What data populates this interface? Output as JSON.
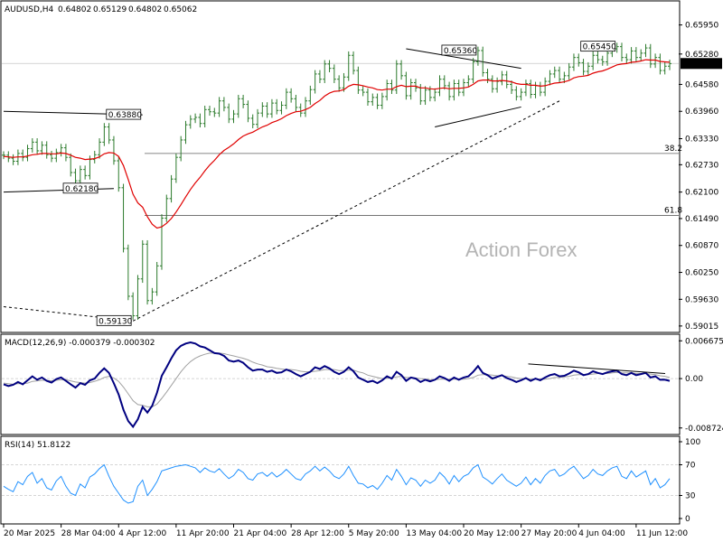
{
  "chart_data": {
    "type": "line",
    "header": {
      "symbol": "AUDUSD,H4",
      "ohlc": [
        "0.64802",
        "0.65129",
        "0.64802",
        "0.65062"
      ]
    },
    "watermark": "Action Forex",
    "colors": {
      "price": "#2b7a2b",
      "ma": "#e00000",
      "macd": "#000080",
      "signal": "#a0a0a0",
      "rsi": "#1e90ff",
      "grid": "#c8c8c8"
    },
    "price_axis": {
      "ticks": [
        "0.65950",
        "0.65280",
        "0.64580",
        "0.63960",
        "0.63330",
        "0.62730",
        "0.62100",
        "0.61490",
        "0.60870",
        "0.60250",
        "0.59630",
        "0.59015"
      ],
      "ylim": [
        0.5895,
        0.6615
      ],
      "current": "0.65062"
    },
    "x_axis": {
      "labels": [
        "20 Mar 2025",
        "28 Mar 04:00",
        "4 Apr 12:00",
        "11 Apr 20:00",
        "21 Apr 04:00",
        "28 Apr 12:00",
        "5 May 20:00",
        "13 May 04:00",
        "20 May 12:00",
        "27 May 20:00",
        "4 Jun 04:00",
        "11 Jun 12:00"
      ],
      "label_index": [
        0,
        12,
        24,
        36,
        48,
        60,
        72,
        84,
        96,
        108,
        120,
        132
      ],
      "count": 140
    },
    "price": [
      0.6295,
      0.6288,
      0.6281,
      0.6299,
      0.629,
      0.631,
      0.6325,
      0.6305,
      0.6318,
      0.6296,
      0.6288,
      0.6301,
      0.6312,
      0.629,
      0.6255,
      0.6236,
      0.6262,
      0.6248,
      0.6285,
      0.6296,
      0.6325,
      0.636,
      0.633,
      0.6282,
      0.622,
      0.608,
      0.597,
      0.5925,
      0.601,
      0.609,
      0.596,
      0.598,
      0.604,
      0.615,
      0.6195,
      0.624,
      0.629,
      0.633,
      0.6365,
      0.6378,
      0.6382,
      0.6368,
      0.64,
      0.6395,
      0.6392,
      0.642,
      0.6405,
      0.6378,
      0.639,
      0.6425,
      0.6412,
      0.638,
      0.6366,
      0.6392,
      0.6408,
      0.639,
      0.6415,
      0.6398,
      0.641,
      0.644,
      0.6425,
      0.6405,
      0.6392,
      0.642,
      0.6446,
      0.6482,
      0.647,
      0.6505,
      0.6495,
      0.647,
      0.645,
      0.6475,
      0.6525,
      0.649,
      0.6445,
      0.644,
      0.6418,
      0.6428,
      0.641,
      0.643,
      0.646,
      0.6445,
      0.6505,
      0.6478,
      0.6432,
      0.6462,
      0.645,
      0.642,
      0.6445,
      0.6428,
      0.644,
      0.647,
      0.6455,
      0.643,
      0.646,
      0.644,
      0.6462,
      0.647,
      0.651,
      0.6536,
      0.6485,
      0.647,
      0.6448,
      0.6465,
      0.648,
      0.6458,
      0.6445,
      0.643,
      0.644,
      0.646,
      0.6435,
      0.6455,
      0.644,
      0.6465,
      0.6482,
      0.649,
      0.647,
      0.6478,
      0.6498,
      0.652,
      0.6508,
      0.6488,
      0.65,
      0.6525,
      0.6515,
      0.651,
      0.653,
      0.654,
      0.6545,
      0.652,
      0.6515,
      0.6535,
      0.652,
      0.653,
      0.6542,
      0.6505,
      0.652,
      0.649,
      0.65,
      0.6506
    ],
    "ma": [
      0.6292,
      0.6291,
      0.629,
      0.6291,
      0.6291,
      0.6293,
      0.6296,
      0.6297,
      0.6299,
      0.6299,
      0.6298,
      0.6298,
      0.63,
      0.6299,
      0.6295,
      0.629,
      0.6288,
      0.6285,
      0.6286,
      0.6287,
      0.6291,
      0.6298,
      0.6301,
      0.63,
      0.6292,
      0.6271,
      0.6239,
      0.6205,
      0.6185,
      0.6175,
      0.6153,
      0.6136,
      0.6127,
      0.613,
      0.6138,
      0.6149,
      0.6164,
      0.6181,
      0.6199,
      0.6216,
      0.6231,
      0.6244,
      0.6259,
      0.6272,
      0.6283,
      0.6296,
      0.6306,
      0.6313,
      0.6321,
      0.6331,
      0.6339,
      0.6344,
      0.6348,
      0.6354,
      0.636,
      0.6364,
      0.637,
      0.6374,
      0.6379,
      0.6386,
      0.6391,
      0.6395,
      0.6396,
      0.64,
      0.6405,
      0.6414,
      0.6421,
      0.6431,
      0.6438,
      0.6442,
      0.6443,
      0.6446,
      0.6454,
      0.6458,
      0.6457,
      0.6455,
      0.6452,
      0.645,
      0.6446,
      0.6445,
      0.6447,
      0.6447,
      0.6453,
      0.6456,
      0.6453,
      0.6454,
      0.6454,
      0.645,
      0.645,
      0.6448,
      0.6447,
      0.6449,
      0.645,
      0.6448,
      0.6449,
      0.6449,
      0.645,
      0.6452,
      0.6458,
      0.6466,
      0.6468,
      0.6468,
      0.6466,
      0.6466,
      0.6467,
      0.6466,
      0.6464,
      0.646,
      0.6458,
      0.6458,
      0.6456,
      0.6456,
      0.6454,
      0.6455,
      0.6458,
      0.6461,
      0.6462,
      0.6464,
      0.6467,
      0.6473,
      0.6476,
      0.6477,
      0.6479,
      0.6484,
      0.6487,
      0.6489,
      0.6493,
      0.6498,
      0.6503,
      0.6505,
      0.6506,
      0.6509,
      0.651,
      0.6512,
      0.6515,
      0.6514,
      0.6514,
      0.6511,
      0.651,
      0.6509
    ],
    "horizontal_levels": [
      {
        "label": "38.2",
        "value": 0.6299
      },
      {
        "label": "61.8",
        "value": 0.6156
      }
    ],
    "price_labels": [
      {
        "text": "0.63880",
        "index": 29,
        "value": 0.6388
      },
      {
        "text": "0.62180",
        "index": 20,
        "value": 0.6218
      },
      {
        "text": "0.65360",
        "index": 99,
        "value": 0.6536
      },
      {
        "text": "0.65450",
        "index": 128,
        "value": 0.6545
      },
      {
        "text": "0.59130",
        "index": 27,
        "value": 0.5913
      }
    ],
    "trend_lines": [
      {
        "style": "solid",
        "x1": 0,
        "y1": 0.6396,
        "x2": 29,
        "y2": 0.6388
      },
      {
        "style": "solid",
        "x1": 0,
        "y1": 0.621,
        "x2": 23,
        "y2": 0.6218
      },
      {
        "style": "solid",
        "x1": 84,
        "y1": 0.654,
        "x2": 108,
        "y2": 0.6495
      },
      {
        "style": "solid",
        "x1": 90,
        "y1": 0.636,
        "x2": 108,
        "y2": 0.6406
      },
      {
        "style": "dashed",
        "x1": 0,
        "y1": 0.5946,
        "x2": 27,
        "y2": 0.5913
      },
      {
        "style": "dashed",
        "x1": 27,
        "y1": 0.5913,
        "x2": 116,
        "y2": 0.642
      }
    ],
    "macd": {
      "title": "MACD(12,26,9) -0.000379 -0.000302",
      "ticks": [
        "0.006675",
        "0.00",
        "-0.008724"
      ],
      "ylim": [
        -0.0094,
        0.0072
      ],
      "divergence_line": {
        "x1": 111,
        "y1": 0.0026,
        "x2": 143,
        "y2": 0.0009
      },
      "macd": [
        -0.001,
        -0.0013,
        -0.0011,
        -0.0006,
        -0.001,
        -0.0003,
        0.0004,
        -0.0002,
        0.0002,
        -0.0004,
        -0.0007,
        -0.0001,
        0.0002,
        -0.0004,
        -0.001,
        -0.0016,
        -0.0008,
        -0.0011,
        -0.0003,
        0.0,
        0.001,
        0.0018,
        0.001,
        -0.0008,
        -0.0028,
        -0.0055,
        -0.0075,
        -0.0085,
        -0.0072,
        -0.005,
        -0.006,
        -0.0048,
        -0.0025,
        0.0005,
        0.002,
        0.0036,
        0.005,
        0.0058,
        0.0062,
        0.0064,
        0.0062,
        0.0057,
        0.0055,
        0.005,
        0.0045,
        0.0044,
        0.004,
        0.0032,
        0.003,
        0.0032,
        0.0028,
        0.002,
        0.0014,
        0.0016,
        0.0016,
        0.0012,
        0.0014,
        0.001,
        0.0011,
        0.0016,
        0.0013,
        0.0008,
        0.0004,
        0.0008,
        0.0012,
        0.002,
        0.0017,
        0.0022,
        0.0018,
        0.0012,
        0.0008,
        0.0012,
        0.002,
        0.0013,
        0.0002,
        -0.0002,
        -0.0006,
        -0.0004,
        -0.0008,
        -0.0003,
        0.0004,
        0.0,
        0.0012,
        0.0006,
        -0.0004,
        0.0002,
        0.0,
        -0.0006,
        -0.0002,
        -0.0005,
        -0.0002,
        0.0004,
        0.0001,
        -0.0004,
        0.0002,
        -0.0002,
        0.0002,
        0.0004,
        0.0012,
        0.0022,
        0.001,
        0.0006,
        0.0,
        0.0003,
        0.0006,
        0.0001,
        -0.0002,
        -0.0006,
        -0.0003,
        0.0001,
        -0.0004,
        0.0,
        -0.0003,
        0.0002,
        0.0006,
        0.0008,
        0.0004,
        0.0005,
        0.0009,
        0.0014,
        0.0011,
        0.0006,
        0.0008,
        0.0013,
        0.001,
        0.0008,
        0.0011,
        0.0013,
        0.0014,
        0.0008,
        0.0006,
        0.001,
        0.0006,
        0.0008,
        0.001,
        0.0002,
        0.0004,
        -0.0002,
        -0.0002,
        -0.0004
      ],
      "signal": [
        -0.0008,
        -0.0009,
        -0.001,
        -0.0009,
        -0.0009,
        -0.0008,
        -0.0005,
        -0.0004,
        -0.0003,
        -0.0003,
        -0.0004,
        -0.0003,
        -0.0002,
        -0.0002,
        -0.0004,
        -0.0006,
        -0.0007,
        -0.0008,
        -0.0007,
        -0.0005,
        -0.0002,
        0.0002,
        0.0004,
        0.0001,
        -0.0005,
        -0.0015,
        -0.0027,
        -0.0039,
        -0.0046,
        -0.0047,
        -0.005,
        -0.005,
        -0.0045,
        -0.0035,
        -0.0024,
        -0.0012,
        0.0,
        0.0012,
        0.0022,
        0.003,
        0.0036,
        0.004,
        0.0043,
        0.0045,
        0.0045,
        0.0045,
        0.0044,
        0.0042,
        0.004,
        0.0038,
        0.0036,
        0.0033,
        0.0029,
        0.0026,
        0.0024,
        0.0021,
        0.002,
        0.0018,
        0.0017,
        0.0016,
        0.0016,
        0.0015,
        0.0013,
        0.0012,
        0.0012,
        0.0013,
        0.0014,
        0.0016,
        0.0016,
        0.0016,
        0.0014,
        0.0014,
        0.0015,
        0.0015,
        0.0012,
        0.001,
        0.0006,
        0.0004,
        0.0002,
        0.0,
        0.0001,
        0.0001,
        0.0003,
        0.0004,
        0.0002,
        0.0002,
        0.0001,
        0.0,
        -0.0001,
        -0.0002,
        -0.0002,
        -0.0001,
        -0.0001,
        -0.0001,
        -0.0001,
        -0.0001,
        -0.0001,
        0.0,
        0.0002,
        0.0006,
        0.0007,
        0.0007,
        0.0006,
        0.0005,
        0.0005,
        0.0004,
        0.0003,
        0.0001,
        0.0,
        0.0,
        -0.0001,
        -0.0001,
        -0.0001,
        -0.0001,
        0.0,
        0.0002,
        0.0002,
        0.0003,
        0.0004,
        0.0006,
        0.0007,
        0.0007,
        0.0007,
        0.0008,
        0.0009,
        0.0009,
        0.0009,
        0.001,
        0.0011,
        0.001,
        0.001,
        0.001,
        0.0009,
        0.0009,
        0.0009,
        0.0008,
        0.0007,
        0.0005,
        0.0004,
        0.0002
      ]
    },
    "rsi": {
      "title": "RSI(14) 51.8122",
      "ticks": [
        "100",
        "70",
        "30",
        "0"
      ],
      "ylim": [
        0,
        100
      ],
      "levels": [
        70,
        30
      ],
      "values": [
        42,
        38,
        35,
        48,
        44,
        55,
        60,
        46,
        52,
        40,
        37,
        49,
        55,
        42,
        33,
        30,
        45,
        40,
        54,
        58,
        65,
        70,
        55,
        42,
        33,
        24,
        20,
        22,
        42,
        50,
        30,
        38,
        48,
        62,
        64,
        66,
        68,
        69,
        70,
        68,
        66,
        60,
        66,
        62,
        60,
        65,
        58,
        52,
        56,
        64,
        60,
        52,
        50,
        58,
        60,
        55,
        60,
        54,
        58,
        64,
        58,
        52,
        50,
        58,
        62,
        68,
        62,
        67,
        62,
        55,
        52,
        58,
        68,
        56,
        46,
        45,
        40,
        43,
        38,
        46,
        56,
        50,
        64,
        55,
        44,
        53,
        50,
        42,
        50,
        46,
        50,
        60,
        54,
        45,
        56,
        48,
        55,
        58,
        66,
        70,
        54,
        50,
        45,
        52,
        58,
        50,
        46,
        42,
        46,
        54,
        44,
        52,
        46,
        56,
        62,
        64,
        55,
        58,
        64,
        68,
        60,
        52,
        56,
        64,
        58,
        56,
        62,
        66,
        68,
        55,
        52,
        62,
        54,
        58,
        62,
        44,
        52,
        40,
        44,
        52
      ]
    }
  }
}
